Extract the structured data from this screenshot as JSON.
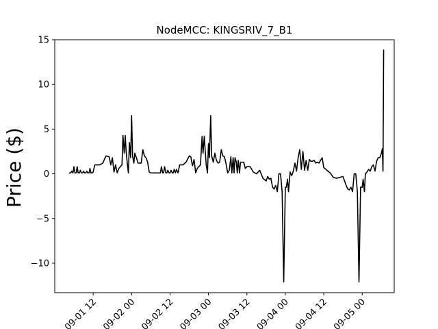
{
  "chart_data": {
    "type": "line",
    "title": "NodeMCC: KINGSRIV_7_B1",
    "xlabel": "",
    "ylabel": "Price ($)",
    "x_tick_labels": [
      "09-01 12",
      "09-02 00",
      "09-02 12",
      "09-03 00",
      "09-03 12",
      "09-04 00",
      "09-04 12",
      "09-05 00"
    ],
    "x_tick_hours": [
      12,
      24,
      36,
      48,
      60,
      72,
      84,
      96
    ],
    "x_tick_label_prefix_clipped": true,
    "xlim_hours": [
      0,
      106
    ],
    "y_ticks": [
      -10,
      -5,
      0,
      5,
      10,
      15
    ],
    "ylim": [
      -13.3,
      15.0
    ],
    "grid": false,
    "line_color": "#000000",
    "series": [
      {
        "x_hours": [
          4.5,
          5,
          5.3,
          5.7,
          6,
          6.3,
          6.7,
          7,
          7.3,
          7.7,
          8,
          8.3,
          8.7,
          9,
          9.3,
          9.7,
          10,
          10.3,
          10.7,
          11,
          11.3,
          11.7,
          12,
          12.5,
          13,
          14,
          15,
          16,
          17,
          17.5,
          18,
          18.5,
          19,
          19.5,
          20,
          20.5,
          21,
          21.3,
          21.7,
          22,
          22.3,
          22.7,
          23,
          23.3,
          23.7,
          24,
          24.3,
          24.7,
          25,
          25.5,
          26,
          27,
          27.5,
          28,
          28.5,
          29,
          29.5,
          30,
          31,
          32,
          33,
          33.3,
          33.7,
          34,
          34.3,
          34.7,
          35,
          35.3,
          35.7,
          36,
          36.3,
          36.7,
          37,
          37.3,
          37.7,
          38,
          38.5,
          39,
          40,
          41,
          42,
          42.5,
          43,
          43.5,
          44,
          44.5,
          45,
          45.5,
          46,
          46.3,
          46.7,
          47,
          47.3,
          47.7,
          48,
          48.3,
          48.7,
          49,
          49.5,
          50,
          50.5,
          51,
          51.5,
          52,
          52.5,
          53,
          53.5,
          54,
          54.5,
          55,
          55.3,
          55.7,
          56,
          56.3,
          56.7,
          57,
          57.3,
          57.7,
          58,
          58.5,
          59,
          59.5,
          60,
          61,
          62,
          63,
          64,
          65,
          66,
          66.5,
          67,
          67.5,
          68,
          68.5,
          69,
          69.5,
          70,
          70.5,
          71,
          71.5,
          72,
          72.3,
          72.7,
          73,
          73.5,
          74,
          74.5,
          75,
          75.5,
          76,
          76.5,
          77,
          77.5,
          78,
          78.5,
          79,
          79.5,
          80,
          80.5,
          81,
          81.5,
          82,
          82.5,
          83,
          83.5,
          84,
          85,
          86,
          87,
          88,
          89,
          90,
          90.5,
          91,
          91.5,
          92,
          92.5,
          93,
          93.5,
          94,
          94.5,
          95,
          95.5,
          96,
          96.3,
          96.7,
          97,
          97.5,
          98,
          98.5,
          99,
          99.5,
          100,
          100.5,
          101,
          101.5,
          102,
          102.3,
          102.5,
          102.7
        ],
        "y": [
          0.1,
          0.1,
          0.3,
          0.1,
          0.8,
          0.1,
          0.1,
          0.8,
          0.1,
          0.1,
          0.4,
          0.1,
          0.1,
          0.3,
          0.1,
          0.1,
          0.3,
          0.1,
          0.1,
          0.6,
          0.1,
          0.1,
          0.2,
          1.0,
          1.0,
          1.0,
          1.2,
          2.0,
          1.9,
          1.0,
          1.8,
          0.2,
          1.0,
          0.1,
          0.6,
          0.8,
          1.0,
          4.3,
          2.3,
          4.3,
          2.5,
          1.0,
          0.1,
          3.5,
          1.8,
          6.5,
          2.0,
          1.2,
          2.3,
          1.8,
          1.2,
          1.2,
          2.7,
          2.0,
          1.8,
          1.3,
          0.2,
          0.1,
          0.1,
          0.1,
          0.1,
          0.8,
          0.1,
          0.1,
          0.8,
          0.1,
          0.1,
          0.4,
          0.1,
          0.1,
          0.4,
          0.1,
          0.1,
          0.5,
          0.1,
          0.5,
          0.1,
          1.0,
          1.0,
          1.3,
          2.0,
          1.9,
          0.9,
          1.6,
          0.1,
          0.6,
          0.8,
          1.0,
          4.2,
          2.3,
          4.2,
          2.5,
          1.0,
          0.1,
          3.4,
          1.8,
          6.5,
          2.0,
          1.3,
          2.3,
          1.5,
          1.2,
          1.3,
          2.7,
          2.0,
          1.9,
          1.1,
          0.1,
          0.4,
          1.9,
          0.1,
          1.8,
          0.1,
          1.8,
          1.3,
          0.1,
          1.5,
          0.1,
          1.3,
          1.3,
          1.3,
          0.6,
          0.8,
          0.8,
          0.2,
          0.0,
          0.4,
          -0.5,
          -0.8,
          -0.3,
          -0.6,
          -0.5,
          -1.5,
          -1.7,
          -1.3,
          -2.0,
          0.0,
          0.0,
          -2.0,
          -12.1,
          -1.5,
          -1.5,
          -0.6,
          -2.0,
          0.2,
          -0.2,
          0.3,
          1.2,
          0.3,
          1.8,
          2.7,
          0.5,
          2.5,
          0.4,
          1.5,
          0.4,
          1.6,
          1.4,
          1.4,
          1.5,
          1.2,
          1.3,
          1.2,
          1.5,
          1.8,
          0.7,
          0.4,
          0.1,
          -0.4,
          -0.5,
          -0.4,
          -0.3,
          -0.8,
          -1.3,
          -1.7,
          -1.8,
          -1.5,
          -2.0,
          0.0,
          0.0,
          -2.0,
          -12.1,
          -1.5,
          -1.5,
          -0.6,
          -2.0,
          0.0,
          0.2,
          0.5,
          0.3,
          0.8,
          1.0,
          0.3,
          1.4,
          1.8,
          1.8,
          2.3,
          2.8,
          0.3,
          13.9
        ]
      }
    ]
  }
}
